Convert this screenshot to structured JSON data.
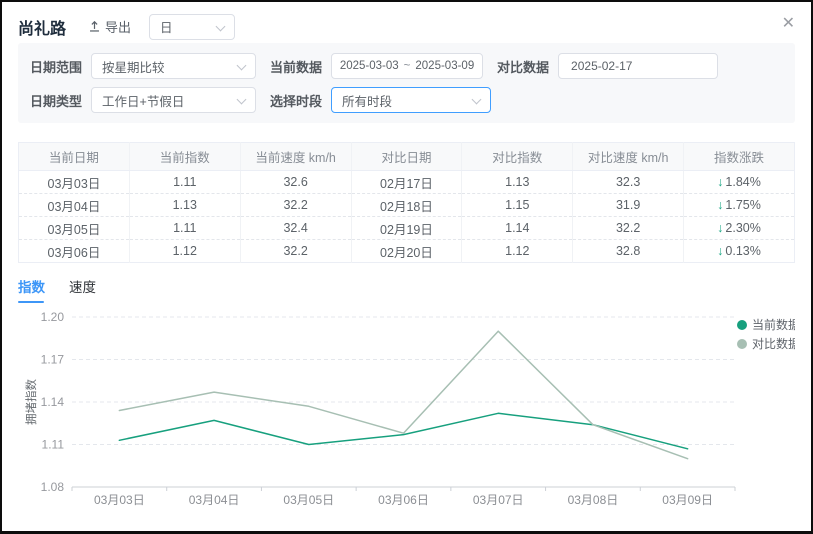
{
  "header": {
    "title": "尚礼路",
    "export_label": "导出",
    "granularity_value": "日",
    "close_glyph": "✕"
  },
  "filters": {
    "date_range": {
      "label": "日期范围",
      "value": "按星期比较"
    },
    "current_data": {
      "label": "当前数据",
      "start": "2025-03-03",
      "separator": "~",
      "end": "2025-03-09"
    },
    "compare_data": {
      "label": "对比数据",
      "value": "2025-02-17"
    },
    "date_type": {
      "label": "日期类型",
      "value": "工作日+节假日"
    },
    "time_period": {
      "label": "选择时段",
      "value": "所有时段"
    }
  },
  "table": {
    "headers": [
      "当前日期",
      "当前指数",
      "当前速度 km/h",
      "对比日期",
      "对比指数",
      "对比速度 km/h",
      "指数涨跌"
    ],
    "trend_arrow": "↓",
    "rows": [
      [
        "03月03日",
        "1.11",
        "32.6",
        "02月17日",
        "1.13",
        "32.3",
        "1.84%"
      ],
      [
        "03月04日",
        "1.13",
        "32.2",
        "02月18日",
        "1.15",
        "31.9",
        "1.75%"
      ],
      [
        "03月05日",
        "1.11",
        "32.4",
        "02月19日",
        "1.14",
        "32.2",
        "2.30%"
      ],
      [
        "03月06日",
        "1.12",
        "32.2",
        "02月20日",
        "1.12",
        "32.8",
        "0.13%"
      ]
    ]
  },
  "tabs": [
    {
      "label": "指数",
      "active": true
    },
    {
      "label": "速度",
      "active": false
    }
  ],
  "chart_data": {
    "type": "line",
    "title": "",
    "xlabel": "",
    "ylabel": "拥堵指数",
    "categories": [
      "03月03日",
      "03月04日",
      "03月05日",
      "03月06日",
      "03月07日",
      "03月08日",
      "03月09日"
    ],
    "series": [
      {
        "name": "当前数据",
        "color": "#17a07e",
        "values": [
          1.113,
          1.127,
          1.11,
          1.117,
          1.132,
          1.124,
          1.107
        ]
      },
      {
        "name": "对比数据",
        "color": "#a7bfb3",
        "values": [
          1.134,
          1.147,
          1.137,
          1.118,
          1.19,
          1.124,
          1.1
        ]
      }
    ],
    "ylim": [
      1.08,
      1.2
    ],
    "yticks": [
      1.08,
      1.11,
      1.14,
      1.17,
      1.2
    ],
    "grid": true,
    "legend_position": "top-right"
  },
  "colors": {
    "accent_blue": "#409eff",
    "current_series": "#17a07e",
    "compare_series": "#a7bfb3",
    "trend_down": "#1ba784"
  }
}
